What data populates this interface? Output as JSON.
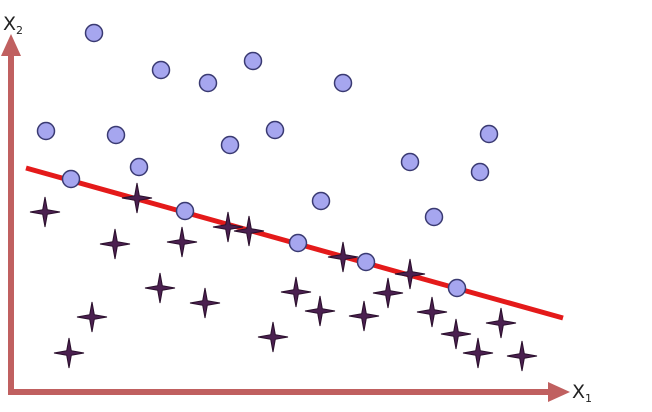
{
  "labels": {
    "x_axis": "X",
    "x_axis_sub": "1",
    "y_axis": "X",
    "y_axis_sub": "2"
  },
  "colors": {
    "axis": "#c06060",
    "separator": "#e41a1a",
    "circle_fill": "#a6a6ef",
    "circle_stroke": "#3a3a72",
    "star_fill": "#4b2050",
    "star_stroke": "#2a0f2c"
  },
  "classes": [
    {
      "shape": "circle",
      "points": [
        [
          94,
          33
        ],
        [
          161,
          70
        ],
        [
          208,
          83
        ],
        [
          253,
          61
        ],
        [
          343,
          83
        ],
        [
          46,
          131
        ],
        [
          116,
          135
        ],
        [
          230,
          145
        ],
        [
          275,
          130
        ],
        [
          139,
          167
        ],
        [
          71,
          179
        ],
        [
          185,
          211
        ],
        [
          321,
          201
        ],
        [
          410,
          162
        ],
        [
          434,
          217
        ],
        [
          480,
          172
        ],
        [
          489,
          134
        ],
        [
          298,
          243
        ],
        [
          366,
          262
        ],
        [
          457,
          288
        ]
      ]
    },
    {
      "shape": "star",
      "points": [
        [
          45,
          212
        ],
        [
          137,
          198
        ],
        [
          115,
          244
        ],
        [
          182,
          242
        ],
        [
          228,
          227
        ],
        [
          249,
          231
        ],
        [
          343,
          257
        ],
        [
          410,
          274
        ],
        [
          160,
          288
        ],
        [
          205,
          303
        ],
        [
          296,
          292
        ],
        [
          92,
          317
        ],
        [
          69,
          353
        ],
        [
          273,
          337
        ],
        [
          320,
          311
        ],
        [
          364,
          316
        ],
        [
          388,
          293
        ],
        [
          432,
          312
        ],
        [
          456,
          334
        ],
        [
          501,
          323
        ],
        [
          478,
          353
        ],
        [
          522,
          356
        ]
      ]
    }
  ],
  "separator": {
    "from": [
      26,
      168
    ],
    "to": [
      563,
      318
    ]
  }
}
